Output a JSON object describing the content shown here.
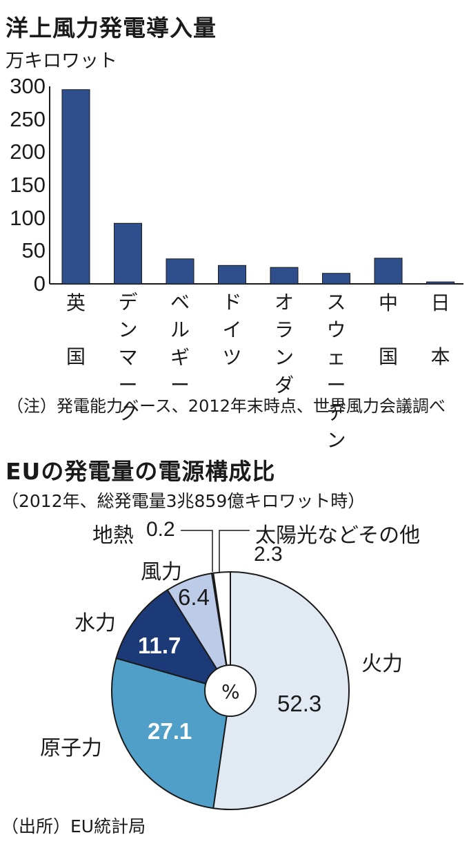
{
  "bar_chart": {
    "title": "洋上風力発電導入量",
    "unit": "万キロワット",
    "note": "（注）発電能力ベース、2012年末時点、世界風力会議調べ"
  },
  "pie_chart": {
    "title": "EUの発電量の電源構成比",
    "subtitle": "（2012年、総発電量3兆859億キロワット時）",
    "center_label": "%",
    "source": "（出所）EU統計局"
  },
  "colors": {
    "bar": "#2e4e8c",
    "hydro": "#1d3a78",
    "nuclear": "#4f9fc8",
    "thermal": "#e1e9f3",
    "wind": "#bccbe8",
    "other": "#ffffff"
  },
  "chart_data": [
    {
      "type": "bar",
      "title": "洋上風力発電導入量",
      "ylabel": "万キロワット",
      "categories": [
        "英国",
        "デンマーク",
        "ベルギー",
        "ドイツ",
        "オランダ",
        "スウェーデン",
        "中国",
        "日本"
      ],
      "values": [
        295,
        92,
        38,
        28,
        25,
        16,
        39,
        3
      ],
      "ylim": [
        0,
        300
      ],
      "yticks": [
        "0",
        "50",
        "100",
        "150",
        "200",
        "250",
        "300"
      ],
      "grid": false
    },
    {
      "type": "pie",
      "title": "EUの発電量の電源構成比",
      "labels": [
        "火力",
        "原子力",
        "水力",
        "風力",
        "地熱",
        "太陽光などその他"
      ],
      "values": [
        52.3,
        27.1,
        11.7,
        6.4,
        0.2,
        2.3
      ],
      "value_labels": [
        "52.3",
        "27.1",
        "11.7",
        "6.4",
        "0.2",
        "2.3"
      ],
      "unit": "%"
    }
  ]
}
